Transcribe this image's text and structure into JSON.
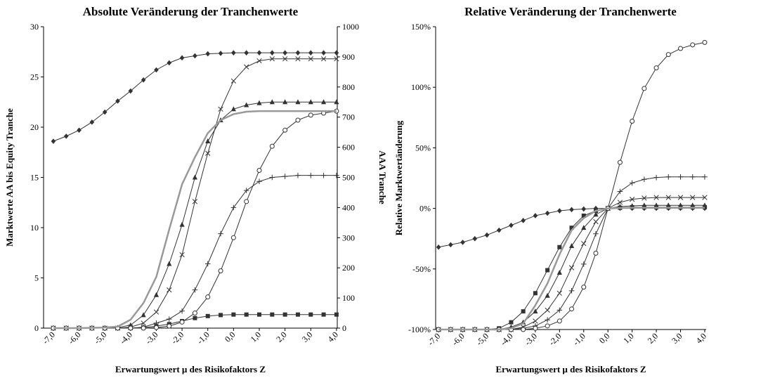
{
  "chart_data": [
    {
      "type": "line",
      "title": "Absolute Veränderung der Tranchenwerte",
      "x_label": "Erwartungswert µ des Risikofaktors Z",
      "y_label": "Marktwerte AA bis Equity Tranche",
      "y2_label": "AAA Tranche",
      "x": [
        -7,
        -6.5,
        -6,
        -5.5,
        -5,
        -4.5,
        -4,
        -3.5,
        -3,
        -2.5,
        -2,
        -1.5,
        -1,
        -0.5,
        0,
        0.5,
        1,
        1.5,
        2,
        2.5,
        3,
        3.5,
        4
      ],
      "xlim": [
        -7.38,
        4.03
      ],
      "xticks": [
        {
          "value": -7,
          "label": "-7,0"
        },
        {
          "value": -6,
          "label": "-6,0"
        },
        {
          "value": -5,
          "label": "-5,0"
        },
        {
          "value": -4,
          "label": "-4,0"
        },
        {
          "value": -3,
          "label": "-3,0"
        },
        {
          "value": -2,
          "label": "-2,0"
        },
        {
          "value": -1,
          "label": "-1,0"
        },
        {
          "value": 0,
          "label": "0,0"
        },
        {
          "value": 1,
          "label": "1,0"
        },
        {
          "value": 2,
          "label": "2,0"
        },
        {
          "value": 3,
          "label": "3,0"
        },
        {
          "value": 4,
          "label": "4,0"
        }
      ],
      "ylim": [
        0,
        30
      ],
      "yticks": [
        0,
        5,
        10,
        15,
        20,
        25,
        30
      ],
      "y2lim": [
        0,
        1000
      ],
      "y2ticks": [
        0,
        100,
        200,
        300,
        400,
        500,
        600,
        700,
        800,
        900,
        1000
      ],
      "series": [
        {
          "marker": "diamond",
          "color": "#333333",
          "values": [
            18.6,
            19.1,
            19.7,
            20.5,
            21.5,
            22.6,
            23.6,
            24.7,
            25.7,
            26.4,
            26.9,
            27.1,
            27.3,
            27.35,
            27.4,
            27.4,
            27.4,
            27.4,
            27.4,
            27.4,
            27.4,
            27.4,
            27.4
          ]
        },
        {
          "marker": "square",
          "color": "#333333",
          "values": [
            0,
            0,
            0,
            0,
            0,
            0,
            0,
            0.05,
            0.2,
            0.4,
            0.7,
            1.0,
            1.2,
            1.3,
            1.35,
            1.35,
            1.35,
            1.35,
            1.35,
            1.35,
            1.35,
            1.35,
            1.35
          ]
        },
        {
          "marker": "triangle",
          "color": "#333333",
          "values": [
            0,
            0,
            0,
            0,
            0,
            0.05,
            0.3,
            1.3,
            3.3,
            6.4,
            10.3,
            15.0,
            18.6,
            20.7,
            21.8,
            22.2,
            22.4,
            22.5,
            22.5,
            22.5,
            22.5,
            22.5,
            22.5
          ]
        },
        {
          "marker": "cross",
          "color": "#333333",
          "values": [
            0,
            0,
            0,
            0,
            0,
            0,
            0.1,
            0.5,
            1.6,
            3.8,
            7.3,
            12.6,
            17.4,
            21.8,
            24.6,
            26.0,
            26.6,
            26.8,
            26.8,
            26.8,
            26.8,
            26.8,
            26.8
          ]
        },
        {
          "marker": "plus",
          "color": "#333333",
          "values": [
            0,
            0,
            0,
            0,
            0,
            0,
            0,
            0.1,
            0.5,
            0.9,
            1.7,
            3.8,
            6.4,
            9.4,
            12.0,
            13.7,
            14.6,
            15.0,
            15.1,
            15.2,
            15.2,
            15.2,
            15.2
          ]
        },
        {
          "marker": "circle",
          "color": "#333333",
          "values": [
            0,
            0,
            0,
            0,
            0,
            0,
            0,
            0,
            0.05,
            0.2,
            0.6,
            1.5,
            3.1,
            5.7,
            9.0,
            12.6,
            15.7,
            18.1,
            19.7,
            20.7,
            21.2,
            21.4,
            21.6
          ]
        },
        {
          "marker": "none",
          "color": "#999999",
          "axis": "y2",
          "values": [
            0,
            0,
            0,
            1,
            2,
            5,
            28,
            83,
            170,
            327,
            477,
            567,
            647,
            690,
            710,
            718,
            720,
            720,
            720,
            720,
            720,
            720,
            720
          ]
        }
      ]
    },
    {
      "type": "line",
      "title": "Relative Veränderung der Tranchenwerte",
      "x_label": "Erwartungswert µ des Risikofaktors Z",
      "y_label": "Relative Marktwertänderung",
      "x": [
        -7,
        -6.5,
        -6,
        -5.5,
        -5,
        -4.5,
        -4,
        -3.5,
        -3,
        -2.5,
        -2,
        -1.5,
        -1,
        -0.5,
        0,
        0.5,
        1,
        1.5,
        2,
        2.5,
        3,
        3.5,
        4
      ],
      "xlim": [
        -7.12,
        4.06
      ],
      "xticks": [
        {
          "value": -7,
          "label": "-7,0"
        },
        {
          "value": -6,
          "label": "-6,0"
        },
        {
          "value": -5,
          "label": "-5,0"
        },
        {
          "value": -4,
          "label": "-4,0"
        },
        {
          "value": -3,
          "label": "-3,0"
        },
        {
          "value": -2,
          "label": "-2,0"
        },
        {
          "value": -1,
          "label": "-1,0"
        },
        {
          "value": 0,
          "label": "0,0"
        },
        {
          "value": 1,
          "label": "1,0"
        },
        {
          "value": 2,
          "label": "2,0"
        },
        {
          "value": 3,
          "label": "3,0"
        },
        {
          "value": 4,
          "label": "4,0"
        }
      ],
      "ylim": [
        -100,
        150
      ],
      "yticks": [
        {
          "value": -100,
          "label": "-100%"
        },
        {
          "value": -50,
          "label": "-50%"
        },
        {
          "value": 0,
          "label": "0%"
        },
        {
          "value": 50,
          "label": "50%"
        },
        {
          "value": 100,
          "label": "100%"
        },
        {
          "value": 150,
          "label": "150%"
        }
      ],
      "series": [
        {
          "marker": "diamond",
          "color": "#333333",
          "values": [
            -32,
            -30,
            -28,
            -25,
            -22,
            -18,
            -14,
            -10,
            -6,
            -4,
            -2,
            -1,
            -0.5,
            0,
            0,
            0.1,
            0.1,
            0.1,
            0.1,
            0.1,
            0.1,
            0.1,
            0.1
          ]
        },
        {
          "marker": "square",
          "color": "#333333",
          "values": [
            -100,
            -100,
            -100,
            -100,
            -100,
            -99,
            -94,
            -85,
            -70,
            -51,
            -32,
            -16,
            -6,
            -2,
            0,
            0.5,
            1,
            1,
            1,
            1,
            1,
            1,
            1
          ]
        },
        {
          "marker": "triangle",
          "color": "#333333",
          "values": [
            -100,
            -100,
            -100,
            -100,
            -100,
            -100,
            -98,
            -94,
            -85,
            -72,
            -53,
            -31,
            -16,
            -5,
            0,
            1.5,
            2,
            2.5,
            2.5,
            2.5,
            2.5,
            2.5,
            2.5
          ]
        },
        {
          "marker": "cross",
          "color": "#333333",
          "values": [
            -100,
            -100,
            -100,
            -100,
            -100,
            -100,
            -100,
            -98,
            -93,
            -84,
            -70,
            -49,
            -29,
            -11,
            0,
            5,
            7.5,
            8.5,
            9,
            9,
            9,
            9,
            9
          ]
        },
        {
          "marker": "plus",
          "color": "#333333",
          "values": [
            -100,
            -100,
            -100,
            -100,
            -100,
            -100,
            -100,
            -99,
            -97,
            -92,
            -84,
            -68,
            -46,
            -21,
            0,
            14,
            21,
            24,
            25.5,
            26,
            26,
            26,
            26
          ]
        },
        {
          "marker": "circle",
          "color": "#333333",
          "values": [
            -100,
            -100,
            -100,
            -100,
            -100,
            -100,
            -100,
            -100,
            -99,
            -97,
            -93,
            -83,
            -65,
            -37,
            0,
            38,
            72,
            99,
            116,
            127,
            132,
            135,
            137
          ]
        },
        {
          "marker": "none",
          "color": "#999999",
          "values": [
            -100,
            -100,
            -100,
            -100,
            -100,
            -100,
            -99,
            -95,
            -80,
            -62,
            -38,
            -18,
            -8,
            -2,
            0,
            0.3,
            0.5,
            0.5,
            0.5,
            0.5,
            0.5,
            0.5,
            0.5
          ]
        }
      ]
    }
  ]
}
